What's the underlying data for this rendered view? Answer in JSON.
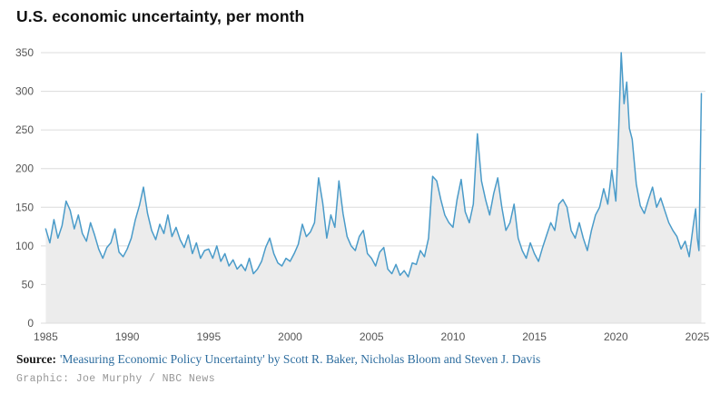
{
  "title": "U.S. economic uncertainty, per month",
  "footer": {
    "source_label": "Source:",
    "source_text": "'Measuring Economic Policy Uncertainty' by Scott R. Baker, Nicholas Bloom and Steven J. Davis",
    "credit": "Graphic: Joe Murphy / NBC News"
  },
  "colors": {
    "line": "#4a9bc9",
    "area": "#ececec",
    "grid": "#dcdcdc",
    "tick_text": "#555555",
    "source_link": "#2d6d9f",
    "credit_text": "#979797",
    "title_text": "#111111"
  },
  "chart_data": {
    "type": "line",
    "title": "U.S. economic uncertainty, per month",
    "xlabel": "",
    "ylabel": "",
    "x_ticks": [
      1985,
      1990,
      1995,
      2000,
      2005,
      2010,
      2015,
      2020,
      2025
    ],
    "y_ticks": [
      0,
      50,
      100,
      150,
      200,
      250,
      300,
      350
    ],
    "xlim": [
      1984.7,
      2025.5
    ],
    "ylim": [
      0,
      350
    ],
    "grid": true,
    "legend": "none",
    "series": [
      {
        "name": "U.S. economic uncertainty",
        "points": [
          [
            1985.0,
            122
          ],
          [
            1985.25,
            104
          ],
          [
            1985.5,
            134
          ],
          [
            1985.75,
            110
          ],
          [
            1986.0,
            126
          ],
          [
            1986.25,
            158
          ],
          [
            1986.5,
            146
          ],
          [
            1986.75,
            122
          ],
          [
            1987.0,
            140
          ],
          [
            1987.25,
            116
          ],
          [
            1987.5,
            106
          ],
          [
            1987.75,
            130
          ],
          [
            1988.0,
            114
          ],
          [
            1988.25,
            96
          ],
          [
            1988.5,
            84
          ],
          [
            1988.75,
            98
          ],
          [
            1989.0,
            104
          ],
          [
            1989.25,
            122
          ],
          [
            1989.5,
            92
          ],
          [
            1989.75,
            86
          ],
          [
            1990.0,
            96
          ],
          [
            1990.25,
            110
          ],
          [
            1990.5,
            134
          ],
          [
            1990.75,
            152
          ],
          [
            1991.0,
            176
          ],
          [
            1991.25,
            142
          ],
          [
            1991.5,
            120
          ],
          [
            1991.75,
            108
          ],
          [
            1992.0,
            128
          ],
          [
            1992.25,
            116
          ],
          [
            1992.5,
            140
          ],
          [
            1992.75,
            112
          ],
          [
            1993.0,
            124
          ],
          [
            1993.25,
            108
          ],
          [
            1993.5,
            98
          ],
          [
            1993.75,
            114
          ],
          [
            1994.0,
            90
          ],
          [
            1994.25,
            104
          ],
          [
            1994.5,
            84
          ],
          [
            1994.75,
            94
          ],
          [
            1995.0,
            96
          ],
          [
            1995.25,
            84
          ],
          [
            1995.5,
            100
          ],
          [
            1995.75,
            80
          ],
          [
            1996.0,
            90
          ],
          [
            1996.25,
            74
          ],
          [
            1996.5,
            82
          ],
          [
            1996.75,
            70
          ],
          [
            1997.0,
            76
          ],
          [
            1997.25,
            68
          ],
          [
            1997.5,
            84
          ],
          [
            1997.75,
            64
          ],
          [
            1998.0,
            70
          ],
          [
            1998.25,
            80
          ],
          [
            1998.5,
            98
          ],
          [
            1998.75,
            110
          ],
          [
            1999.0,
            90
          ],
          [
            1999.25,
            78
          ],
          [
            1999.5,
            74
          ],
          [
            1999.75,
            84
          ],
          [
            2000.0,
            80
          ],
          [
            2000.25,
            90
          ],
          [
            2000.5,
            102
          ],
          [
            2000.75,
            128
          ],
          [
            2001.0,
            112
          ],
          [
            2001.25,
            118
          ],
          [
            2001.5,
            130
          ],
          [
            2001.75,
            188
          ],
          [
            2002.0,
            156
          ],
          [
            2002.25,
            110
          ],
          [
            2002.5,
            140
          ],
          [
            2002.75,
            124
          ],
          [
            2003.0,
            184
          ],
          [
            2003.25,
            142
          ],
          [
            2003.5,
            112
          ],
          [
            2003.75,
            100
          ],
          [
            2004.0,
            94
          ],
          [
            2004.25,
            112
          ],
          [
            2004.5,
            120
          ],
          [
            2004.75,
            90
          ],
          [
            2005.0,
            84
          ],
          [
            2005.25,
            74
          ],
          [
            2005.5,
            92
          ],
          [
            2005.75,
            98
          ],
          [
            2006.0,
            70
          ],
          [
            2006.25,
            64
          ],
          [
            2006.5,
            76
          ],
          [
            2006.75,
            62
          ],
          [
            2007.0,
            68
          ],
          [
            2007.25,
            60
          ],
          [
            2007.5,
            78
          ],
          [
            2007.75,
            76
          ],
          [
            2008.0,
            94
          ],
          [
            2008.25,
            86
          ],
          [
            2008.5,
            110
          ],
          [
            2008.75,
            190
          ],
          [
            2009.0,
            184
          ],
          [
            2009.25,
            160
          ],
          [
            2009.5,
            140
          ],
          [
            2009.75,
            130
          ],
          [
            2010.0,
            124
          ],
          [
            2010.25,
            160
          ],
          [
            2010.5,
            186
          ],
          [
            2010.75,
            144
          ],
          [
            2011.0,
            130
          ],
          [
            2011.25,
            154
          ],
          [
            2011.5,
            245
          ],
          [
            2011.75,
            184
          ],
          [
            2012.0,
            160
          ],
          [
            2012.25,
            140
          ],
          [
            2012.5,
            168
          ],
          [
            2012.75,
            188
          ],
          [
            2013.0,
            150
          ],
          [
            2013.25,
            120
          ],
          [
            2013.5,
            130
          ],
          [
            2013.75,
            154
          ],
          [
            2014.0,
            110
          ],
          [
            2014.25,
            94
          ],
          [
            2014.5,
            84
          ],
          [
            2014.75,
            104
          ],
          [
            2015.0,
            90
          ],
          [
            2015.25,
            80
          ],
          [
            2015.5,
            98
          ],
          [
            2015.75,
            114
          ],
          [
            2016.0,
            130
          ],
          [
            2016.25,
            120
          ],
          [
            2016.5,
            154
          ],
          [
            2016.75,
            160
          ],
          [
            2017.0,
            150
          ],
          [
            2017.25,
            120
          ],
          [
            2017.5,
            110
          ],
          [
            2017.75,
            130
          ],
          [
            2018.0,
            110
          ],
          [
            2018.25,
            94
          ],
          [
            2018.5,
            120
          ],
          [
            2018.75,
            140
          ],
          [
            2019.0,
            150
          ],
          [
            2019.25,
            174
          ],
          [
            2019.5,
            154
          ],
          [
            2019.75,
            198
          ],
          [
            2020.0,
            158
          ],
          [
            2020.17,
            250
          ],
          [
            2020.33,
            350
          ],
          [
            2020.5,
            284
          ],
          [
            2020.67,
            312
          ],
          [
            2020.83,
            252
          ],
          [
            2021.0,
            238
          ],
          [
            2021.25,
            180
          ],
          [
            2021.5,
            152
          ],
          [
            2021.75,
            142
          ],
          [
            2022.0,
            160
          ],
          [
            2022.25,
            176
          ],
          [
            2022.5,
            150
          ],
          [
            2022.75,
            162
          ],
          [
            2023.0,
            146
          ],
          [
            2023.25,
            130
          ],
          [
            2023.5,
            120
          ],
          [
            2023.75,
            112
          ],
          [
            2024.0,
            96
          ],
          [
            2024.25,
            106
          ],
          [
            2024.5,
            86
          ],
          [
            2024.75,
            126
          ],
          [
            2024.9,
            148
          ],
          [
            2025.0,
            110
          ],
          [
            2025.1,
            94
          ],
          [
            2025.25,
            297
          ]
        ]
      }
    ]
  }
}
